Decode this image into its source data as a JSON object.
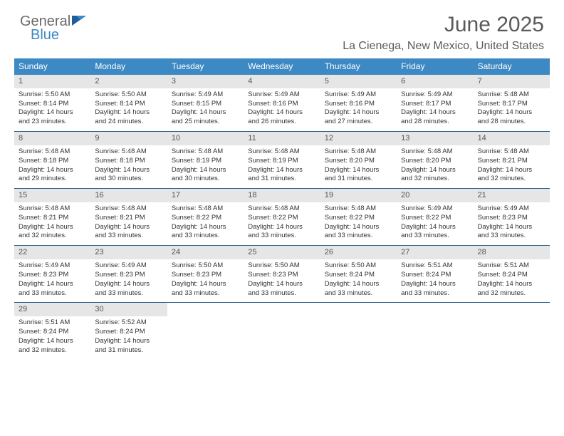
{
  "logo": {
    "word1": "General",
    "word2": "Blue"
  },
  "title": "June 2025",
  "location": "La Cienega, New Mexico, United States",
  "accent_color": "#3d89c3",
  "header_rule_color": "#2b5f8a",
  "daynum_bg": "#e6e6e6",
  "day_headers": [
    "Sunday",
    "Monday",
    "Tuesday",
    "Wednesday",
    "Thursday",
    "Friday",
    "Saturday"
  ],
  "weeks": [
    [
      {
        "n": "1",
        "sr": "Sunrise: 5:50 AM",
        "ss": "Sunset: 8:14 PM",
        "d1": "Daylight: 14 hours",
        "d2": "and 23 minutes."
      },
      {
        "n": "2",
        "sr": "Sunrise: 5:50 AM",
        "ss": "Sunset: 8:14 PM",
        "d1": "Daylight: 14 hours",
        "d2": "and 24 minutes."
      },
      {
        "n": "3",
        "sr": "Sunrise: 5:49 AM",
        "ss": "Sunset: 8:15 PM",
        "d1": "Daylight: 14 hours",
        "d2": "and 25 minutes."
      },
      {
        "n": "4",
        "sr": "Sunrise: 5:49 AM",
        "ss": "Sunset: 8:16 PM",
        "d1": "Daylight: 14 hours",
        "d2": "and 26 minutes."
      },
      {
        "n": "5",
        "sr": "Sunrise: 5:49 AM",
        "ss": "Sunset: 8:16 PM",
        "d1": "Daylight: 14 hours",
        "d2": "and 27 minutes."
      },
      {
        "n": "6",
        "sr": "Sunrise: 5:49 AM",
        "ss": "Sunset: 8:17 PM",
        "d1": "Daylight: 14 hours",
        "d2": "and 28 minutes."
      },
      {
        "n": "7",
        "sr": "Sunrise: 5:48 AM",
        "ss": "Sunset: 8:17 PM",
        "d1": "Daylight: 14 hours",
        "d2": "and 28 minutes."
      }
    ],
    [
      {
        "n": "8",
        "sr": "Sunrise: 5:48 AM",
        "ss": "Sunset: 8:18 PM",
        "d1": "Daylight: 14 hours",
        "d2": "and 29 minutes."
      },
      {
        "n": "9",
        "sr": "Sunrise: 5:48 AM",
        "ss": "Sunset: 8:18 PM",
        "d1": "Daylight: 14 hours",
        "d2": "and 30 minutes."
      },
      {
        "n": "10",
        "sr": "Sunrise: 5:48 AM",
        "ss": "Sunset: 8:19 PM",
        "d1": "Daylight: 14 hours",
        "d2": "and 30 minutes."
      },
      {
        "n": "11",
        "sr": "Sunrise: 5:48 AM",
        "ss": "Sunset: 8:19 PM",
        "d1": "Daylight: 14 hours",
        "d2": "and 31 minutes."
      },
      {
        "n": "12",
        "sr": "Sunrise: 5:48 AM",
        "ss": "Sunset: 8:20 PM",
        "d1": "Daylight: 14 hours",
        "d2": "and 31 minutes."
      },
      {
        "n": "13",
        "sr": "Sunrise: 5:48 AM",
        "ss": "Sunset: 8:20 PM",
        "d1": "Daylight: 14 hours",
        "d2": "and 32 minutes."
      },
      {
        "n": "14",
        "sr": "Sunrise: 5:48 AM",
        "ss": "Sunset: 8:21 PM",
        "d1": "Daylight: 14 hours",
        "d2": "and 32 minutes."
      }
    ],
    [
      {
        "n": "15",
        "sr": "Sunrise: 5:48 AM",
        "ss": "Sunset: 8:21 PM",
        "d1": "Daylight: 14 hours",
        "d2": "and 32 minutes."
      },
      {
        "n": "16",
        "sr": "Sunrise: 5:48 AM",
        "ss": "Sunset: 8:21 PM",
        "d1": "Daylight: 14 hours",
        "d2": "and 33 minutes."
      },
      {
        "n": "17",
        "sr": "Sunrise: 5:48 AM",
        "ss": "Sunset: 8:22 PM",
        "d1": "Daylight: 14 hours",
        "d2": "and 33 minutes."
      },
      {
        "n": "18",
        "sr": "Sunrise: 5:48 AM",
        "ss": "Sunset: 8:22 PM",
        "d1": "Daylight: 14 hours",
        "d2": "and 33 minutes."
      },
      {
        "n": "19",
        "sr": "Sunrise: 5:48 AM",
        "ss": "Sunset: 8:22 PM",
        "d1": "Daylight: 14 hours",
        "d2": "and 33 minutes."
      },
      {
        "n": "20",
        "sr": "Sunrise: 5:49 AM",
        "ss": "Sunset: 8:22 PM",
        "d1": "Daylight: 14 hours",
        "d2": "and 33 minutes."
      },
      {
        "n": "21",
        "sr": "Sunrise: 5:49 AM",
        "ss": "Sunset: 8:23 PM",
        "d1": "Daylight: 14 hours",
        "d2": "and 33 minutes."
      }
    ],
    [
      {
        "n": "22",
        "sr": "Sunrise: 5:49 AM",
        "ss": "Sunset: 8:23 PM",
        "d1": "Daylight: 14 hours",
        "d2": "and 33 minutes."
      },
      {
        "n": "23",
        "sr": "Sunrise: 5:49 AM",
        "ss": "Sunset: 8:23 PM",
        "d1": "Daylight: 14 hours",
        "d2": "and 33 minutes."
      },
      {
        "n": "24",
        "sr": "Sunrise: 5:50 AM",
        "ss": "Sunset: 8:23 PM",
        "d1": "Daylight: 14 hours",
        "d2": "and 33 minutes."
      },
      {
        "n": "25",
        "sr": "Sunrise: 5:50 AM",
        "ss": "Sunset: 8:23 PM",
        "d1": "Daylight: 14 hours",
        "d2": "and 33 minutes."
      },
      {
        "n": "26",
        "sr": "Sunrise: 5:50 AM",
        "ss": "Sunset: 8:24 PM",
        "d1": "Daylight: 14 hours",
        "d2": "and 33 minutes."
      },
      {
        "n": "27",
        "sr": "Sunrise: 5:51 AM",
        "ss": "Sunset: 8:24 PM",
        "d1": "Daylight: 14 hours",
        "d2": "and 33 minutes."
      },
      {
        "n": "28",
        "sr": "Sunrise: 5:51 AM",
        "ss": "Sunset: 8:24 PM",
        "d1": "Daylight: 14 hours",
        "d2": "and 32 minutes."
      }
    ],
    [
      {
        "n": "29",
        "sr": "Sunrise: 5:51 AM",
        "ss": "Sunset: 8:24 PM",
        "d1": "Daylight: 14 hours",
        "d2": "and 32 minutes."
      },
      {
        "n": "30",
        "sr": "Sunrise: 5:52 AM",
        "ss": "Sunset: 8:24 PM",
        "d1": "Daylight: 14 hours",
        "d2": "and 31 minutes."
      },
      null,
      null,
      null,
      null,
      null
    ]
  ]
}
